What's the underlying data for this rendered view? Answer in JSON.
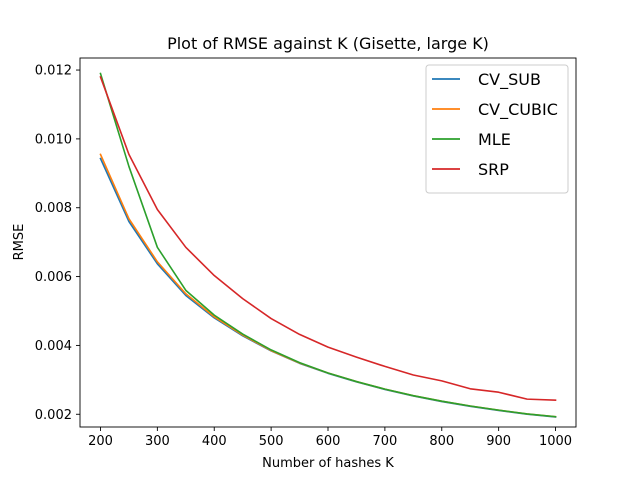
{
  "chart_data": {
    "type": "line",
    "title": "Plot of RMSE against K (Gisette, large K)",
    "xlabel": "Number of hashes K",
    "ylabel": "RMSE",
    "xlim": [
      164,
      1036
    ],
    "ylim": [
      0.00163,
      0.01235
    ],
    "xticks": [
      200,
      300,
      400,
      500,
      600,
      700,
      800,
      900,
      1000
    ],
    "xtick_labels": [
      "200",
      "300",
      "400",
      "500",
      "600",
      "700",
      "800",
      "900",
      "1000"
    ],
    "yticks": [
      0.002,
      0.004,
      0.006,
      0.008,
      0.01,
      0.012
    ],
    "ytick_labels": [
      "0.002",
      "0.004",
      "0.006",
      "0.008",
      "0.010",
      "0.012"
    ],
    "grid": false,
    "legend_position": "top-right",
    "x": [
      200,
      250,
      300,
      350,
      400,
      450,
      500,
      550,
      600,
      650,
      700,
      750,
      800,
      850,
      900,
      950,
      1000
    ],
    "series": [
      {
        "name": "CV_SUB",
        "color": "#1f77b4",
        "values": [
          0.00943,
          0.0076,
          0.00637,
          0.00545,
          0.0048,
          0.00428,
          0.00384,
          0.00348,
          0.00319,
          0.00294,
          0.00272,
          0.00253,
          0.00237,
          0.00223,
          0.00211,
          0.002,
          0.00192
        ]
      },
      {
        "name": "CV_CUBIC",
        "color": "#ff7f0e",
        "values": [
          0.00955,
          0.00768,
          0.00643,
          0.0055,
          0.00483,
          0.0043,
          0.00385,
          0.00349,
          0.0032,
          0.00295,
          0.00273,
          0.00254,
          0.00238,
          0.00224,
          0.00212,
          0.00201,
          0.00193
        ]
      },
      {
        "name": "MLE",
        "color": "#2ca02c",
        "values": [
          0.0119,
          0.0092,
          0.00685,
          0.0056,
          0.00488,
          0.00433,
          0.00387,
          0.0035,
          0.0032,
          0.00295,
          0.00273,
          0.00254,
          0.00238,
          0.00224,
          0.00212,
          0.00201,
          0.00193
        ]
      },
      {
        "name": "SRP",
        "color": "#d62728",
        "values": [
          0.0118,
          0.00955,
          0.00795,
          0.00685,
          0.00603,
          0.00536,
          0.00478,
          0.00432,
          0.00395,
          0.00366,
          0.00339,
          0.00314,
          0.00297,
          0.00274,
          0.00264,
          0.00244,
          0.00241
        ]
      }
    ]
  }
}
